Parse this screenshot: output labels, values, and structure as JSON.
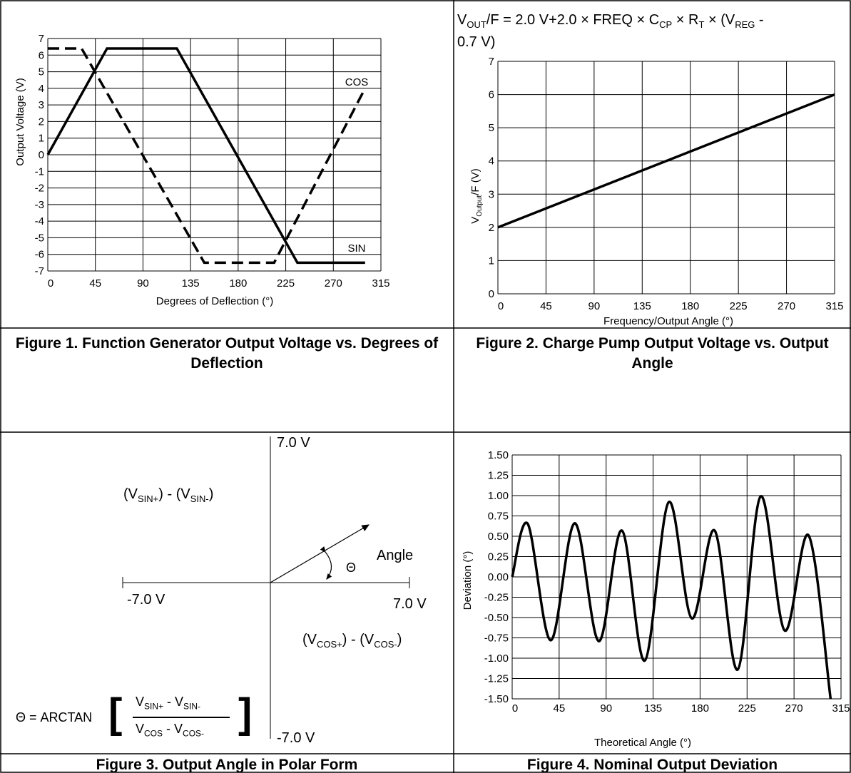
{
  "figure1": {
    "caption": "Figure 1. Function Generator Output Voltage vs. Degrees of Deflection",
    "chart_data": {
      "type": "line",
      "xlabel": "Degrees of Deflection (°)",
      "ylabel": "Output Voltage (V)",
      "xlim": [
        0,
        315
      ],
      "ylim": [
        -7,
        7
      ],
      "xticks": [
        "0",
        "45",
        "90",
        "135",
        "180",
        "225",
        "270",
        "315"
      ],
      "yticks": [
        "7",
        "6",
        "5",
        "4",
        "3",
        "2",
        "1",
        "0",
        "-1",
        "-2",
        "-3",
        "-4",
        "-5",
        "-6",
        "-7"
      ],
      "grid": true,
      "series": [
        {
          "name": "SIN",
          "style": "solid",
          "x": [
            0,
            56,
            122,
            236,
            300
          ],
          "y": [
            0,
            6.4,
            6.4,
            -6.5,
            -6.5
          ]
        },
        {
          "name": "COS",
          "style": "dashed",
          "x": [
            0,
            32,
            148,
            214,
            300
          ],
          "y": [
            6.4,
            6.4,
            -6.5,
            -6.5,
            4.0
          ]
        }
      ],
      "annotations": [
        "COS",
        "SIN"
      ]
    }
  },
  "figure2": {
    "caption": "Figure 2. Charge Pump Output Voltage vs. Output Angle",
    "formula": {
      "p1": "V",
      "s1": "OUT",
      "p2": "/F = 2.0 V+2.0 × FREQ × C",
      "s2": "CP",
      "p3": " × R",
      "s3": "T",
      "p4": " × (V",
      "s4": "REG",
      "p5": " -",
      "line2": "0.7 V)"
    },
    "chart_data": {
      "type": "line",
      "xlabel": "Frequency/Output Angle (°)",
      "ylabel_main": "V",
      "ylabel_sub": "Output",
      "ylabel_rest": "/F (V)",
      "xlim": [
        0,
        315
      ],
      "ylim": [
        0,
        7
      ],
      "xticks": [
        "0",
        "45",
        "90",
        "135",
        "180",
        "225",
        "270",
        "315"
      ],
      "yticks": [
        "7",
        "6",
        "5",
        "4",
        "3",
        "2",
        "1",
        "0"
      ],
      "grid": true,
      "series": [
        {
          "x": [
            0,
            315
          ],
          "y": [
            2.0,
            6.0
          ]
        }
      ]
    }
  },
  "figure3": {
    "caption": "Figure 3. Output Angle in Polar Form",
    "top_label": "7.0 V",
    "bottom_label": "-7.0 V",
    "left_label": "-7.0 V",
    "right_label": "7.0 V",
    "sin_label": {
      "a": "(V",
      "b": "SIN+",
      "c": ") - (V",
      "d": "SIN-",
      "e": ")"
    },
    "cos_label": {
      "a": "(V",
      "b": "COS+",
      "c": ") - (V",
      "d": "COS-",
      "e": ")"
    },
    "theta": "Θ",
    "angle_label": "Angle",
    "formula": {
      "lhs": "Θ = ARCTAN",
      "num_a": "V",
      "num_b": "SIN+",
      "num_c": " - V",
      "num_d": "SIN-",
      "den_a": "V",
      "den_b": "COS",
      "den_c": " - V",
      "den_d": "COS-"
    }
  },
  "figure4": {
    "caption": "Figure 4. Nominal Output Deviation",
    "chart_data": {
      "type": "line",
      "xlabel": "Theoretical Angle (°)",
      "ylabel": "Deviation (°)",
      "xlim": [
        0,
        315
      ],
      "ylim": [
        -1.5,
        1.5
      ],
      "xticks": [
        "0",
        "45",
        "90",
        "135",
        "180",
        "225",
        "270",
        "315"
      ],
      "yticks": [
        "1.50",
        "1.25",
        "1.00",
        "0.75",
        "0.50",
        "0.25",
        "0.00",
        "-0.25",
        "-0.50",
        "-0.75",
        "-1.00",
        "-1.25",
        "-1.50"
      ],
      "grid": true,
      "series": [
        {
          "x": [
            0,
            15,
            37,
            60,
            83,
            105,
            127,
            150,
            172,
            194,
            216,
            238,
            261,
            284,
            305
          ],
          "y": [
            0.0,
            0.65,
            -0.78,
            0.66,
            -0.79,
            0.57,
            -1.03,
            0.92,
            -0.51,
            0.57,
            -1.14,
            0.99,
            -0.66,
            0.51,
            -1.5
          ]
        }
      ]
    }
  }
}
